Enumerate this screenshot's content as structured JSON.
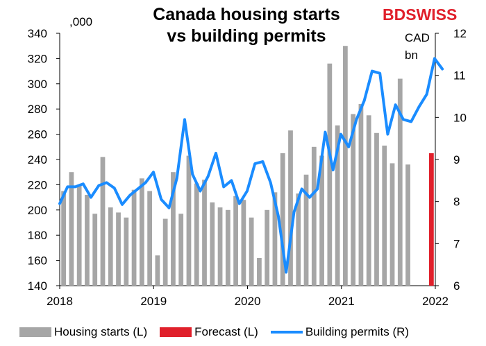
{
  "title_line1": "Canada housing starts",
  "title_line2": "vs building permits",
  "logo": {
    "bd": "BD",
    "swiss": "SWISS"
  },
  "unit_left": ",000",
  "unit_right_line1": "CAD",
  "unit_right_line2": "bn",
  "legend": {
    "housing": "Housing starts (L)",
    "forecast": "Forecast (L)",
    "permits": "Building permits (R)"
  },
  "colors": {
    "housing": "#a6a6a6",
    "forecast": "#e0202b",
    "permits": "#1a8cff",
    "axis": "#000000"
  },
  "chart_data": {
    "type": "bar",
    "x_start": "2018-01",
    "x_end": "2022-01",
    "x_ticks": [
      "2018",
      "2019",
      "2020",
      "2021",
      "2022"
    ],
    "ylim_left": [
      140,
      340
    ],
    "yticks_left": [
      140,
      160,
      180,
      200,
      220,
      240,
      260,
      280,
      300,
      320,
      340
    ],
    "ylim_right": [
      6,
      12
    ],
    "yticks_right": [
      6,
      7,
      8,
      9,
      10,
      11,
      12
    ],
    "series": [
      {
        "name": "Housing starts (L)",
        "axis": "left",
        "type": "bar",
        "values": [
          215,
          230,
          219,
          212,
          197,
          242,
          202,
          198,
          194,
          216,
          225,
          215,
          164,
          193,
          230,
          197,
          243,
          221,
          224,
          206,
          202,
          200,
          211,
          208,
          194,
          162,
          200,
          214,
          245,
          263,
          213,
          228,
          250,
          243,
          316,
          267,
          330,
          276,
          284,
          275,
          261,
          251,
          237,
          304,
          236
        ]
      },
      {
        "name": "Forecast (L)",
        "axis": "left",
        "type": "bar",
        "values": [
          245
        ]
      },
      {
        "name": "Building permits (R)",
        "axis": "right",
        "type": "line",
        "values": [
          7.95,
          8.35,
          8.35,
          8.42,
          8.1,
          8.38,
          8.45,
          8.32,
          7.93,
          8.15,
          8.3,
          8.45,
          8.7,
          8.05,
          7.85,
          8.55,
          9.95,
          8.65,
          8.25,
          8.6,
          9.15,
          8.35,
          8.5,
          7.95,
          8.25,
          8.9,
          8.95,
          8.45,
          7.65,
          6.32,
          7.75,
          8.3,
          8.1,
          8.3,
          9.65,
          8.75,
          9.6,
          9.3,
          9.95,
          10.4,
          11.1,
          11.05,
          9.6,
          10.3,
          9.95,
          9.9,
          10.25,
          10.55,
          11.4,
          11.15
        ]
      }
    ]
  }
}
